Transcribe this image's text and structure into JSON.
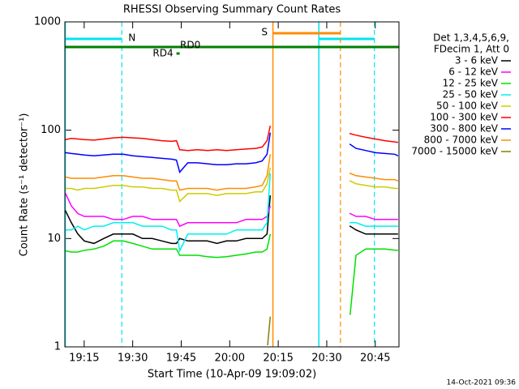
{
  "chart_data": {
    "type": "line",
    "title": "RHESSI Observing Summary Count Rates",
    "x_label": "Start Time (10-Apr-09 19:09:02)",
    "y_label": "Count Rate (s⁻¹ detector⁻¹)",
    "legend_title": [
      "Det 1,3,4,5,6,9,",
      "FDecim 1, Att 0"
    ],
    "footer": "14-Oct-2021 09:36",
    "y_scale": "log",
    "xlim": [
      0,
      103.3
    ],
    "ylim": [
      1,
      1000
    ],
    "xticks": [
      {
        "value": 5.97,
        "label": "19:15"
      },
      {
        "value": 20.97,
        "label": "19:30"
      },
      {
        "value": 35.97,
        "label": "19:45"
      },
      {
        "value": 50.97,
        "label": "20:00"
      },
      {
        "value": 65.97,
        "label": "20:15"
      },
      {
        "value": 80.97,
        "label": "20:30"
      },
      {
        "value": 95.97,
        "label": "20:45"
      }
    ],
    "yticks": [
      1,
      10,
      100,
      1000
    ],
    "x": [
      0,
      2,
      4,
      6,
      9,
      12,
      15,
      18,
      21,
      24,
      27,
      30,
      33,
      34.5,
      35.5,
      38,
      41,
      44,
      47,
      50,
      53,
      56,
      59,
      61,
      62.5,
      63.5,
      65,
      88,
      90,
      93,
      96,
      99,
      102,
      103
    ],
    "series": [
      {
        "name": "3 - 6 keV",
        "color": "#000000",
        "values": [
          18,
          14,
          11,
          9.5,
          9,
          10,
          11,
          11,
          11,
          10,
          10,
          9.5,
          9,
          9,
          10,
          9.5,
          9.5,
          9.5,
          9,
          9.5,
          9.5,
          10,
          10,
          10,
          11,
          25,
          null,
          13,
          12,
          11,
          11,
          11,
          11,
          11
        ]
      },
      {
        "name": "6 - 12 keV",
        "color": "#ff00ff",
        "values": [
          26,
          20,
          17,
          16,
          16,
          16,
          15,
          15,
          16,
          16,
          15,
          15,
          15,
          15,
          13,
          14,
          14,
          14,
          14,
          14,
          14,
          15,
          15,
          15,
          16,
          20,
          null,
          17,
          16,
          16,
          15,
          15,
          15,
          15
        ]
      },
      {
        "name": "12 - 25 keV",
        "color": "#00e000",
        "values": [
          7.7,
          7.5,
          7.5,
          7.8,
          8,
          8.5,
          9.5,
          9.5,
          9,
          8.5,
          8,
          8,
          8,
          8,
          7,
          7,
          7,
          6.8,
          6.7,
          6.8,
          7,
          7.2,
          7.5,
          7.5,
          8,
          11,
          null,
          2,
          7,
          8,
          8,
          8,
          7.8,
          7.8
        ]
      },
      {
        "name": "25 - 50 keV",
        "color": "#00f0f0",
        "values": [
          12,
          12,
          13,
          12,
          13,
          13,
          14,
          14,
          14,
          13,
          13,
          13,
          12,
          12,
          7.7,
          11,
          11,
          11,
          11,
          11,
          12,
          12,
          12,
          12,
          14,
          40,
          null,
          14,
          14,
          13,
          13,
          13,
          13,
          13
        ]
      },
      {
        "name": "50 - 100 keV",
        "color": "#cccc00",
        "values": [
          29,
          29,
          28,
          29,
          29,
          30,
          31,
          31,
          30,
          30,
          29,
          29,
          28,
          28,
          22,
          26,
          26,
          26,
          25,
          26,
          26,
          26,
          27,
          27,
          32,
          45,
          null,
          34,
          32,
          31,
          30,
          30,
          29,
          29
        ]
      },
      {
        "name": "100 - 300 keV",
        "color": "#ff0000",
        "values": [
          82,
          84,
          83,
          82,
          81,
          83,
          85,
          86,
          85,
          84,
          82,
          80,
          79,
          80,
          66,
          65,
          66,
          65,
          66,
          65,
          66,
          67,
          68,
          70,
          80,
          110,
          null,
          93,
          90,
          86,
          83,
          80,
          78,
          77
        ]
      },
      {
        "name": "300 - 800 keV",
        "color": "#0000ff",
        "values": [
          62,
          61,
          60,
          59,
          58,
          59,
          60,
          60,
          58,
          57,
          56,
          55,
          54,
          53,
          41,
          50,
          50,
          49,
          48,
          48,
          49,
          49,
          50,
          52,
          60,
          95,
          null,
          74,
          68,
          65,
          62,
          61,
          60,
          58
        ]
      },
      {
        "name": "800 - 7000 keV",
        "color": "#ff8c00",
        "values": [
          37,
          36,
          36,
          36,
          36,
          37,
          38,
          38,
          37,
          36,
          36,
          35,
          34,
          34,
          28,
          29,
          29,
          29,
          28,
          29,
          29,
          29,
          30,
          31,
          38,
          60,
          null,
          40,
          38,
          37,
          36,
          35,
          35,
          34
        ]
      },
      {
        "name": "7000 - 15000 keV",
        "color": "#8b7d00",
        "values": [
          null,
          null,
          null,
          null,
          null,
          null,
          null,
          null,
          null,
          null,
          null,
          null,
          null,
          null,
          null,
          null,
          null,
          null,
          null,
          null,
          null,
          null,
          null,
          null,
          1.05,
          1.9,
          null,
          null,
          null,
          null,
          null,
          null,
          null,
          null
        ]
      }
    ],
    "flags": [
      {
        "label": "N",
        "color": "#00e5ee",
        "intervals": [
          [
            0,
            17.6
          ],
          [
            78.4,
            95.7
          ]
        ]
      },
      {
        "label": "S",
        "color": "#ff8c00",
        "intervals": [
          [
            64.2,
            85.2
          ]
        ]
      },
      {
        "label": "RD0",
        "color": "#008000",
        "intervals": [
          [
            0,
            103.3
          ]
        ]
      },
      {
        "label": "RD4",
        "color": "#008000",
        "intervals": [
          [
            34.5,
            35.5
          ]
        ]
      }
    ]
  }
}
